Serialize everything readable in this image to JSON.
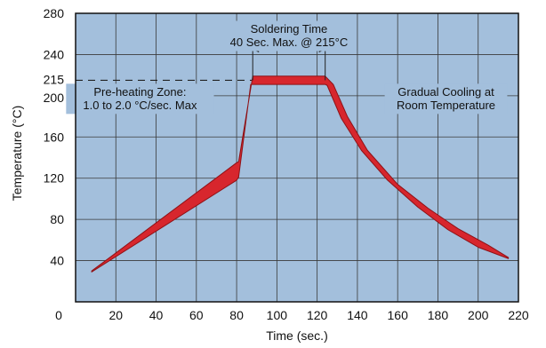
{
  "chart_data": {
    "type": "area",
    "title": "",
    "xlabel": "Time (sec.)",
    "ylabel": "Temperature (°C)",
    "xlim": [
      0,
      220
    ],
    "ylim": [
      0,
      280
    ],
    "x_ticks": [
      0,
      20,
      40,
      60,
      80,
      100,
      120,
      140,
      160,
      180,
      200,
      220
    ],
    "y_ticks": [
      40,
      80,
      120,
      160,
      200,
      215,
      240,
      280
    ],
    "grid": true,
    "legend": "none",
    "colors": {
      "plot_background": "#a3bfdc",
      "band_fill": "#d7262d",
      "band_stroke": "#8e1116",
      "grid": "#3a3a3a"
    },
    "series": [
      {
        "upper": [
          {
            "x": 8,
            "y": 30
          },
          {
            "x": 80,
            "y": 135
          },
          {
            "x": 81,
            "y": 136
          },
          {
            "x": 88,
            "y": 219
          },
          {
            "x": 124,
            "y": 219
          },
          {
            "x": 128,
            "y": 211
          },
          {
            "x": 135,
            "y": 180
          },
          {
            "x": 145,
            "y": 147
          },
          {
            "x": 160,
            "y": 114
          },
          {
            "x": 175,
            "y": 91
          },
          {
            "x": 190,
            "y": 71
          },
          {
            "x": 205,
            "y": 55
          },
          {
            "x": 215,
            "y": 43
          }
        ],
        "lower": [
          {
            "x": 8,
            "y": 29
          },
          {
            "x": 80,
            "y": 118
          },
          {
            "x": 81,
            "y": 121
          },
          {
            "x": 87,
            "y": 211
          },
          {
            "x": 124,
            "y": 211
          },
          {
            "x": 125,
            "y": 210
          },
          {
            "x": 132,
            "y": 178
          },
          {
            "x": 142,
            "y": 147
          },
          {
            "x": 155,
            "y": 118
          },
          {
            "x": 170,
            "y": 92
          },
          {
            "x": 185,
            "y": 70
          },
          {
            "x": 200,
            "y": 53
          },
          {
            "x": 215,
            "y": 42
          }
        ]
      }
    ],
    "reference_line": {
      "y": 215,
      "style": "dashed"
    },
    "span_arrow": {
      "x_start": 88,
      "x_end": 124,
      "y": 245
    },
    "annotations": [
      {
        "lines": [
          "Soldering Time",
          "40 Sec. Max. @ 215°C"
        ],
        "x": 106,
        "y": 258
      },
      {
        "lines": [
          "Pre-heating Zone:",
          "1.0 to 2.0 °C/sec. Max"
        ],
        "x": 32,
        "y": 197
      },
      {
        "lines": [
          "Gradual Cooling at",
          "Room Temperature"
        ],
        "x": 184,
        "y": 197
      }
    ]
  }
}
